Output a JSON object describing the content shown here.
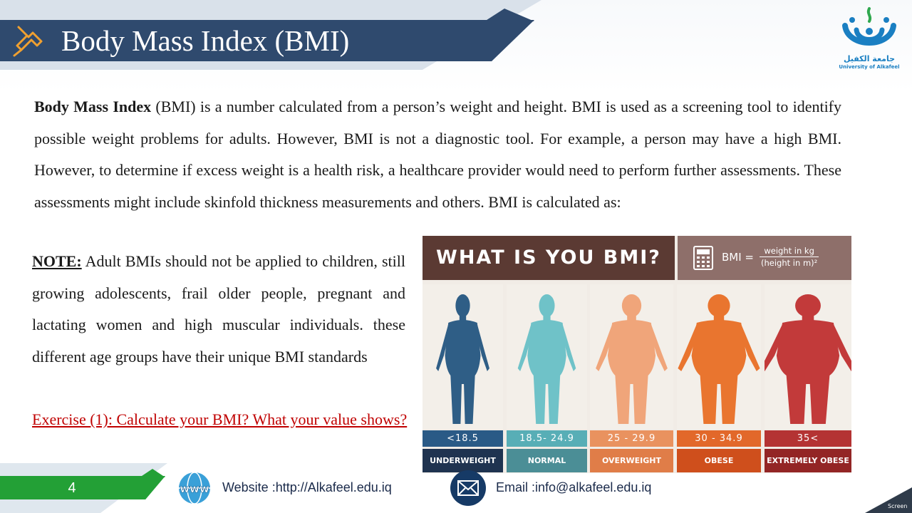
{
  "header": {
    "title": "Body Mass Index (BMI)"
  },
  "logo": {
    "arabic": "جامعة الكفيل",
    "english": "University of Alkafeel"
  },
  "intro": {
    "bold_term": "Body Mass Index",
    "text": " (BMI) is a number calculated from a person’s weight and height. BMI is used as a screening tool to identify possible weight problems for adults. However, BMI is not a diagnostic tool. For example, a person may have a high BMI. However, to determine if excess weight is a health risk, a healthcare provider would need to perform further assessments. These assessments might include skinfold thickness measurements and others. BMI is calculated as:"
  },
  "note": {
    "label": "NOTE:",
    "text": " Adult BMIs should not be applied to children, still growing adolescents, frail older people, pregnant and lactating women and high muscular individuals. these different age groups have their unique BMI standards"
  },
  "exercise": "Exercise (1): Calculate your BMI? What your value shows?",
  "infographic": {
    "title": "WHAT IS YOU BMI?",
    "formula_lhs": "BMI =",
    "formula_num": "weight in kg",
    "formula_den": "(height in m)²",
    "categories": [
      {
        "range": "<18.5",
        "label": "UNDERWEIGHT",
        "color": "#2f5e86",
        "range_color": "#2a5a86",
        "label_color": "#1f3350"
      },
      {
        "range": "18.5- 24.9",
        "label": "NORMAL",
        "color": "#6fc2c8",
        "range_color": "#58aeb6",
        "label_color": "#4b8e96"
      },
      {
        "range": "25 - 29.9",
        "label": "OVERWEIGHT",
        "color": "#f0a57a",
        "range_color": "#e9925f",
        "label_color": "#e07d48"
      },
      {
        "range": "30 - 34.9",
        "label": "OBESE",
        "color": "#e9752f",
        "range_color": "#e2682a",
        "label_color": "#cf4f1c"
      },
      {
        "range": "35<",
        "label": "EXTREMELY OBESE",
        "color": "#c23a3a",
        "range_color": "#b43333",
        "label_color": "#932525"
      }
    ]
  },
  "footer": {
    "page": "4",
    "website": "Website :http://Alkafeel.edu.iq",
    "email": "Email :info@alkafeel.edu.iq",
    "corner": "Screen"
  }
}
